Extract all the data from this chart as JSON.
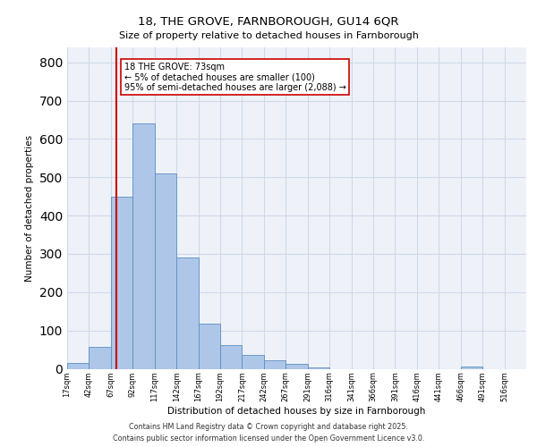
{
  "title1": "18, THE GROVE, FARNBOROUGH, GU14 6QR",
  "title2": "Size of property relative to detached houses in Farnborough",
  "xlabel": "Distribution of detached houses by size in Farnborough",
  "ylabel": "Number of detached properties",
  "bin_labels": [
    "17sqm",
    "42sqm",
    "67sqm",
    "92sqm",
    "117sqm",
    "142sqm",
    "167sqm",
    "192sqm",
    "217sqm",
    "242sqm",
    "267sqm",
    "291sqm",
    "316sqm",
    "341sqm",
    "366sqm",
    "391sqm",
    "416sqm",
    "441sqm",
    "466sqm",
    "491sqm",
    "516sqm"
  ],
  "bar_heights": [
    15,
    58,
    450,
    640,
    510,
    290,
    118,
    63,
    37,
    22,
    12,
    3,
    0,
    0,
    0,
    0,
    0,
    0,
    5,
    0,
    0
  ],
  "bar_color": "#aec6e8",
  "bar_edge_color": "#5a8fc2",
  "vline_x_idx": 2,
  "vline_color": "#cc0000",
  "annotation_text": "18 THE GROVE: 73sqm\n← 5% of detached houses are smaller (100)\n95% of semi-detached houses are larger (2,088) →",
  "annotation_box_color": "#ffffff",
  "annotation_box_edge": "#cc0000",
  "ylim": [
    0,
    840
  ],
  "yticks": [
    0,
    100,
    200,
    300,
    400,
    500,
    600,
    700,
    800
  ],
  "grid_color": "#d0d8e8",
  "background_color": "#eef2f8",
  "footer_line1": "Contains HM Land Registry data © Crown copyright and database right 2025.",
  "footer_line2": "Contains public sector information licensed under the Open Government Licence v3.0."
}
